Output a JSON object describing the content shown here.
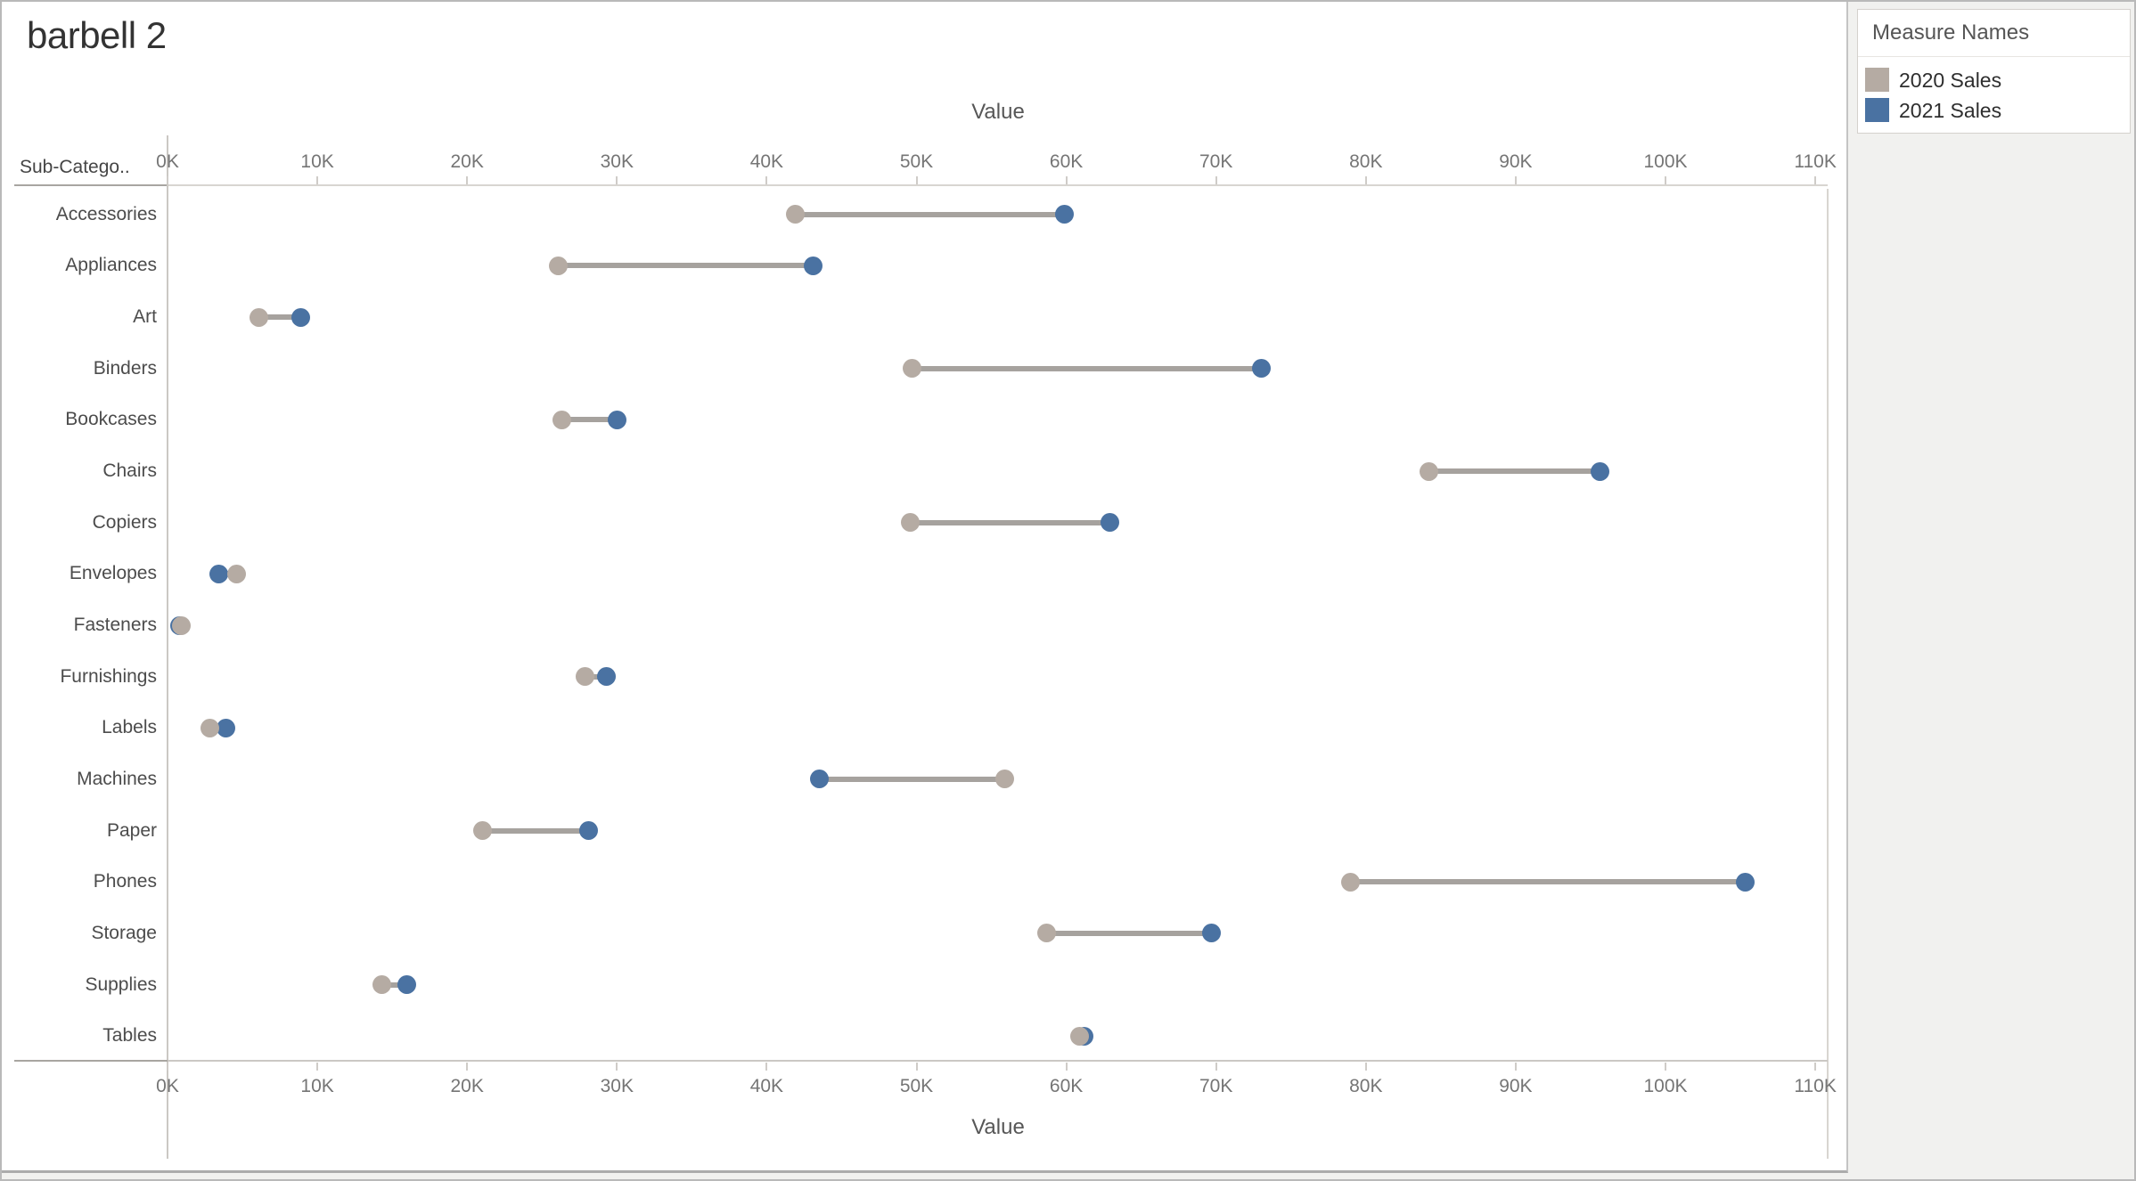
{
  "chart": {
    "title": "barbell 2",
    "row_header": "Sub-Catego..",
    "axis_title_top": "Value",
    "axis_title_bottom": "Value",
    "tick_labels": [
      "0K",
      "10K",
      "20K",
      "30K",
      "40K",
      "50K",
      "60K",
      "70K",
      "80K",
      "90K",
      "100K",
      "110K"
    ]
  },
  "legend": {
    "title": "Measure Names",
    "items": [
      {
        "label": "2020 Sales",
        "color": "#b5aba3"
      },
      {
        "label": "2021 Sales",
        "color": "#4a72a2"
      }
    ]
  },
  "colors": {
    "dot_2020": "#b5aba3",
    "dot_2021": "#4a72a2",
    "connector": "#a6a29e",
    "axis_text": "#757575",
    "panel_bg": "#f1f1ef"
  },
  "chart_data": {
    "type": "dumbbell",
    "title": "barbell 2",
    "xlabel": "Value",
    "ylabel": "Sub-Catego..",
    "x_unit": "thousands (K)",
    "xlim_k": [
      0,
      111
    ],
    "x_ticks_k": [
      0,
      10,
      20,
      30,
      40,
      50,
      60,
      70,
      80,
      90,
      100,
      110
    ],
    "grid": false,
    "legend_position": "top-right",
    "categories": [
      "Accessories",
      "Appliances",
      "Art",
      "Binders",
      "Bookcases",
      "Chairs",
      "Copiers",
      "Envelopes",
      "Fasteners",
      "Furnishings",
      "Labels",
      "Machines",
      "Paper",
      "Phones",
      "Storage",
      "Supplies",
      "Tables"
    ],
    "series": [
      {
        "name": "2020 Sales",
        "color": "#b5aba3",
        "values_k": [
          41.9,
          26.1,
          6.1,
          49.7,
          26.3,
          84.2,
          49.6,
          4.6,
          0.9,
          27.9,
          2.8,
          55.9,
          21.0,
          79.0,
          58.7,
          14.3,
          60.9
        ]
      },
      {
        "name": "2021 Sales",
        "color": "#4a72a2",
        "values_k": [
          59.9,
          43.1,
          8.9,
          73.0,
          30.0,
          95.6,
          62.9,
          3.4,
          0.8,
          29.3,
          3.9,
          43.5,
          28.1,
          105.3,
          69.7,
          16.0,
          61.2
        ]
      }
    ]
  }
}
